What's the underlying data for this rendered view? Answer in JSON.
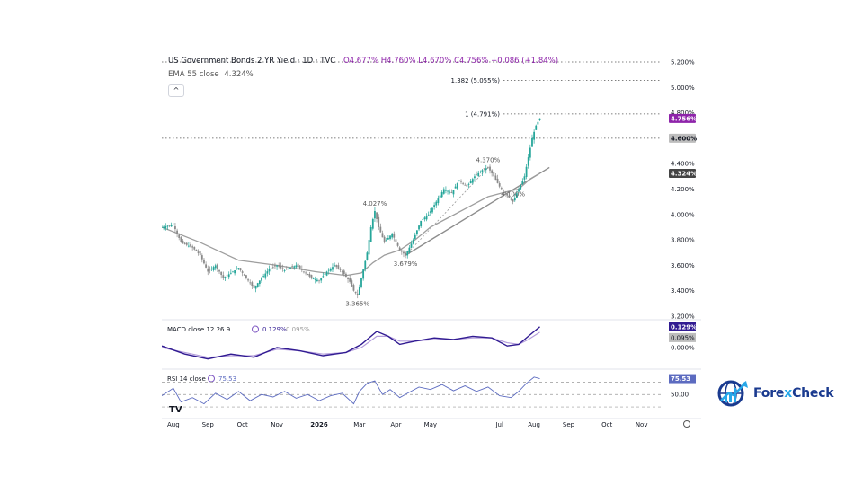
{
  "header": {
    "title": "US Government Bonds 2 YR Yield · 1D · TVC",
    "ohlc": "O4.677% H4.760% L4.670% C4.756% +0.086 (+1.84%)",
    "ema_label": "EMA 55 close",
    "ema_value": "4.324%",
    "collapse_glyph": "^"
  },
  "colors": {
    "candle_up": "#26a69a",
    "candle_down": "#8a8a8a",
    "price_accent": "#8e24aa",
    "ema_line": "#9e9e9e",
    "macd_line": "#311b92",
    "signal_line": "#b39ddb",
    "rsi_line": "#5c6bc0",
    "trendline": "#8d8d8d"
  },
  "chart_data": {
    "type": "line",
    "x_ticks": [
      "Aug",
      "Sep",
      "Oct",
      "Nov",
      "2026",
      "Mar",
      "Apr",
      "May",
      "Jul",
      "Aug",
      "Sep",
      "Oct",
      "Nov"
    ],
    "y_ticks": [
      "5.200%",
      "5.000%",
      "4.800%",
      "4.600%",
      "4.400%",
      "4.200%",
      "4.000%",
      "3.800%",
      "3.600%",
      "3.400%",
      "3.200%"
    ],
    "ylim": [
      3.2,
      5.2
    ],
    "price_series": {
      "name": "US Government Bonds 2 YR Yield",
      "points": [
        [
          0,
          3.9
        ],
        [
          6,
          3.92
        ],
        [
          10,
          3.78
        ],
        [
          16,
          3.74
        ],
        [
          20,
          3.68
        ],
        [
          24,
          3.55
        ],
        [
          28,
          3.6
        ],
        [
          32,
          3.5
        ],
        [
          36,
          3.54
        ],
        [
          40,
          3.58
        ],
        [
          44,
          3.5
        ],
        [
          48,
          3.42
        ],
        [
          52,
          3.5
        ],
        [
          56,
          3.57
        ],
        [
          60,
          3.6
        ],
        [
          64,
          3.56
        ],
        [
          70,
          3.6
        ],
        [
          74,
          3.55
        ],
        [
          78,
          3.5
        ],
        [
          82,
          3.48
        ],
        [
          86,
          3.55
        ],
        [
          90,
          3.6
        ],
        [
          94,
          3.55
        ],
        [
          98,
          3.47
        ],
        [
          100,
          3.4
        ],
        [
          102,
          3.365
        ],
        [
          104,
          3.5
        ],
        [
          107,
          3.7
        ],
        [
          109,
          3.9
        ],
        [
          111,
          4.027
        ],
        [
          113,
          3.9
        ],
        [
          116,
          3.78
        ],
        [
          120,
          3.85
        ],
        [
          124,
          3.72
        ],
        [
          127,
          3.679
        ],
        [
          131,
          3.8
        ],
        [
          135,
          3.95
        ],
        [
          139,
          4.0
        ],
        [
          143,
          4.1
        ],
        [
          147,
          4.2
        ],
        [
          151,
          4.17
        ],
        [
          155,
          4.27
        ],
        [
          159,
          4.22
        ],
        [
          163,
          4.3
        ],
        [
          167,
          4.35
        ],
        [
          170,
          4.37
        ],
        [
          173,
          4.3
        ],
        [
          176,
          4.22
        ],
        [
          180,
          4.15
        ],
        [
          183,
          4.1
        ],
        [
          186,
          4.2
        ],
        [
          189,
          4.3
        ],
        [
          191,
          4.45
        ],
        [
          193,
          4.6
        ],
        [
          195,
          4.7
        ],
        [
          197,
          4.756
        ]
      ]
    },
    "ema_series": {
      "points": [
        [
          0,
          3.9
        ],
        [
          20,
          3.78
        ],
        [
          40,
          3.64
        ],
        [
          60,
          3.6
        ],
        [
          80,
          3.55
        ],
        [
          96,
          3.52
        ],
        [
          104,
          3.54
        ],
        [
          110,
          3.62
        ],
        [
          116,
          3.68
        ],
        [
          124,
          3.72
        ],
        [
          132,
          3.8
        ],
        [
          140,
          3.9
        ],
        [
          150,
          3.98
        ],
        [
          160,
          4.06
        ],
        [
          170,
          4.14
        ],
        [
          180,
          4.18
        ],
        [
          186,
          4.2
        ],
        [
          192,
          4.28
        ],
        [
          197,
          4.324
        ]
      ]
    },
    "trendline": {
      "points": [
        [
          127,
          3.679
        ],
        [
          202,
          4.37
        ]
      ]
    },
    "fib_levels": [
      {
        "label": "1.382 (5.055%)",
        "value": 5.055
      },
      {
        "label": "1 (4.791%)",
        "value": 4.791
      }
    ],
    "extra_levels": [
      5.2,
      4.6
    ],
    "annotations": [
      {
        "label": "4.027%",
        "x": 111,
        "value": 4.027
      },
      {
        "label": "3.365%",
        "x": 102,
        "value": 3.365
      },
      {
        "label": "3.679%",
        "x": 127,
        "value": 3.679
      },
      {
        "label": "4.370%",
        "x": 170,
        "value": 4.37
      },
      {
        "label": "4.100%",
        "x": 183,
        "value": 4.1
      }
    ],
    "price_tags": [
      {
        "label": "4.756%",
        "value": 4.756,
        "kind": "price"
      },
      {
        "label": "4.600%",
        "value": 4.6,
        "kind": "level"
      },
      {
        "label": "4.324%",
        "value": 4.324,
        "kind": "ema"
      }
    ],
    "macd": {
      "label": "MACD close 12 26 9",
      "macd_value": "0.129%",
      "signal_value": "0.095%",
      "y_tick": "0.000%",
      "ylim": [
        -0.1,
        0.15
      ],
      "macd_points": [
        [
          0,
          0.01
        ],
        [
          12,
          -0.04
        ],
        [
          24,
          -0.07
        ],
        [
          36,
          -0.04
        ],
        [
          48,
          -0.06
        ],
        [
          60,
          0.0
        ],
        [
          72,
          -0.02
        ],
        [
          84,
          -0.05
        ],
        [
          96,
          -0.03
        ],
        [
          104,
          0.02
        ],
        [
          112,
          0.1
        ],
        [
          118,
          0.07
        ],
        [
          124,
          0.02
        ],
        [
          132,
          0.04
        ],
        [
          142,
          0.06
        ],
        [
          152,
          0.05
        ],
        [
          162,
          0.07
        ],
        [
          172,
          0.06
        ],
        [
          180,
          0.01
        ],
        [
          186,
          0.02
        ],
        [
          191,
          0.07
        ],
        [
          197,
          0.129
        ]
      ],
      "signal_points": [
        [
          0,
          0.0
        ],
        [
          12,
          -0.03
        ],
        [
          24,
          -0.06
        ],
        [
          36,
          -0.05
        ],
        [
          48,
          -0.05
        ],
        [
          60,
          -0.01
        ],
        [
          72,
          -0.02
        ],
        [
          84,
          -0.04
        ],
        [
          96,
          -0.03
        ],
        [
          104,
          0.0
        ],
        [
          112,
          0.07
        ],
        [
          118,
          0.07
        ],
        [
          124,
          0.04
        ],
        [
          132,
          0.04
        ],
        [
          142,
          0.05
        ],
        [
          152,
          0.05
        ],
        [
          162,
          0.06
        ],
        [
          172,
          0.06
        ],
        [
          180,
          0.03
        ],
        [
          186,
          0.02
        ],
        [
          191,
          0.05
        ],
        [
          197,
          0.095
        ]
      ]
    },
    "rsi": {
      "label": "RSI 14 close",
      "value": "75.53",
      "y_tick": "50.00",
      "levels": [
        70,
        50,
        30
      ],
      "ylim": [
        20,
        85
      ],
      "points": [
        [
          0,
          48
        ],
        [
          6,
          60
        ],
        [
          10,
          38
        ],
        [
          16,
          45
        ],
        [
          22,
          35
        ],
        [
          28,
          52
        ],
        [
          34,
          42
        ],
        [
          40,
          55
        ],
        [
          46,
          40
        ],
        [
          52,
          50
        ],
        [
          58,
          46
        ],
        [
          64,
          55
        ],
        [
          70,
          44
        ],
        [
          76,
          50
        ],
        [
          82,
          40
        ],
        [
          88,
          48
        ],
        [
          94,
          52
        ],
        [
          100,
          35
        ],
        [
          103,
          55
        ],
        [
          107,
          68
        ],
        [
          111,
          72
        ],
        [
          115,
          50
        ],
        [
          119,
          58
        ],
        [
          124,
          45
        ],
        [
          128,
          52
        ],
        [
          134,
          62
        ],
        [
          140,
          58
        ],
        [
          146,
          66
        ],
        [
          152,
          56
        ],
        [
          158,
          64
        ],
        [
          164,
          55
        ],
        [
          170,
          62
        ],
        [
          176,
          48
        ],
        [
          182,
          45
        ],
        [
          186,
          55
        ],
        [
          190,
          68
        ],
        [
          194,
          78
        ],
        [
          197,
          75.53
        ]
      ]
    },
    "xlim": [
      0,
      260
    ]
  }
}
